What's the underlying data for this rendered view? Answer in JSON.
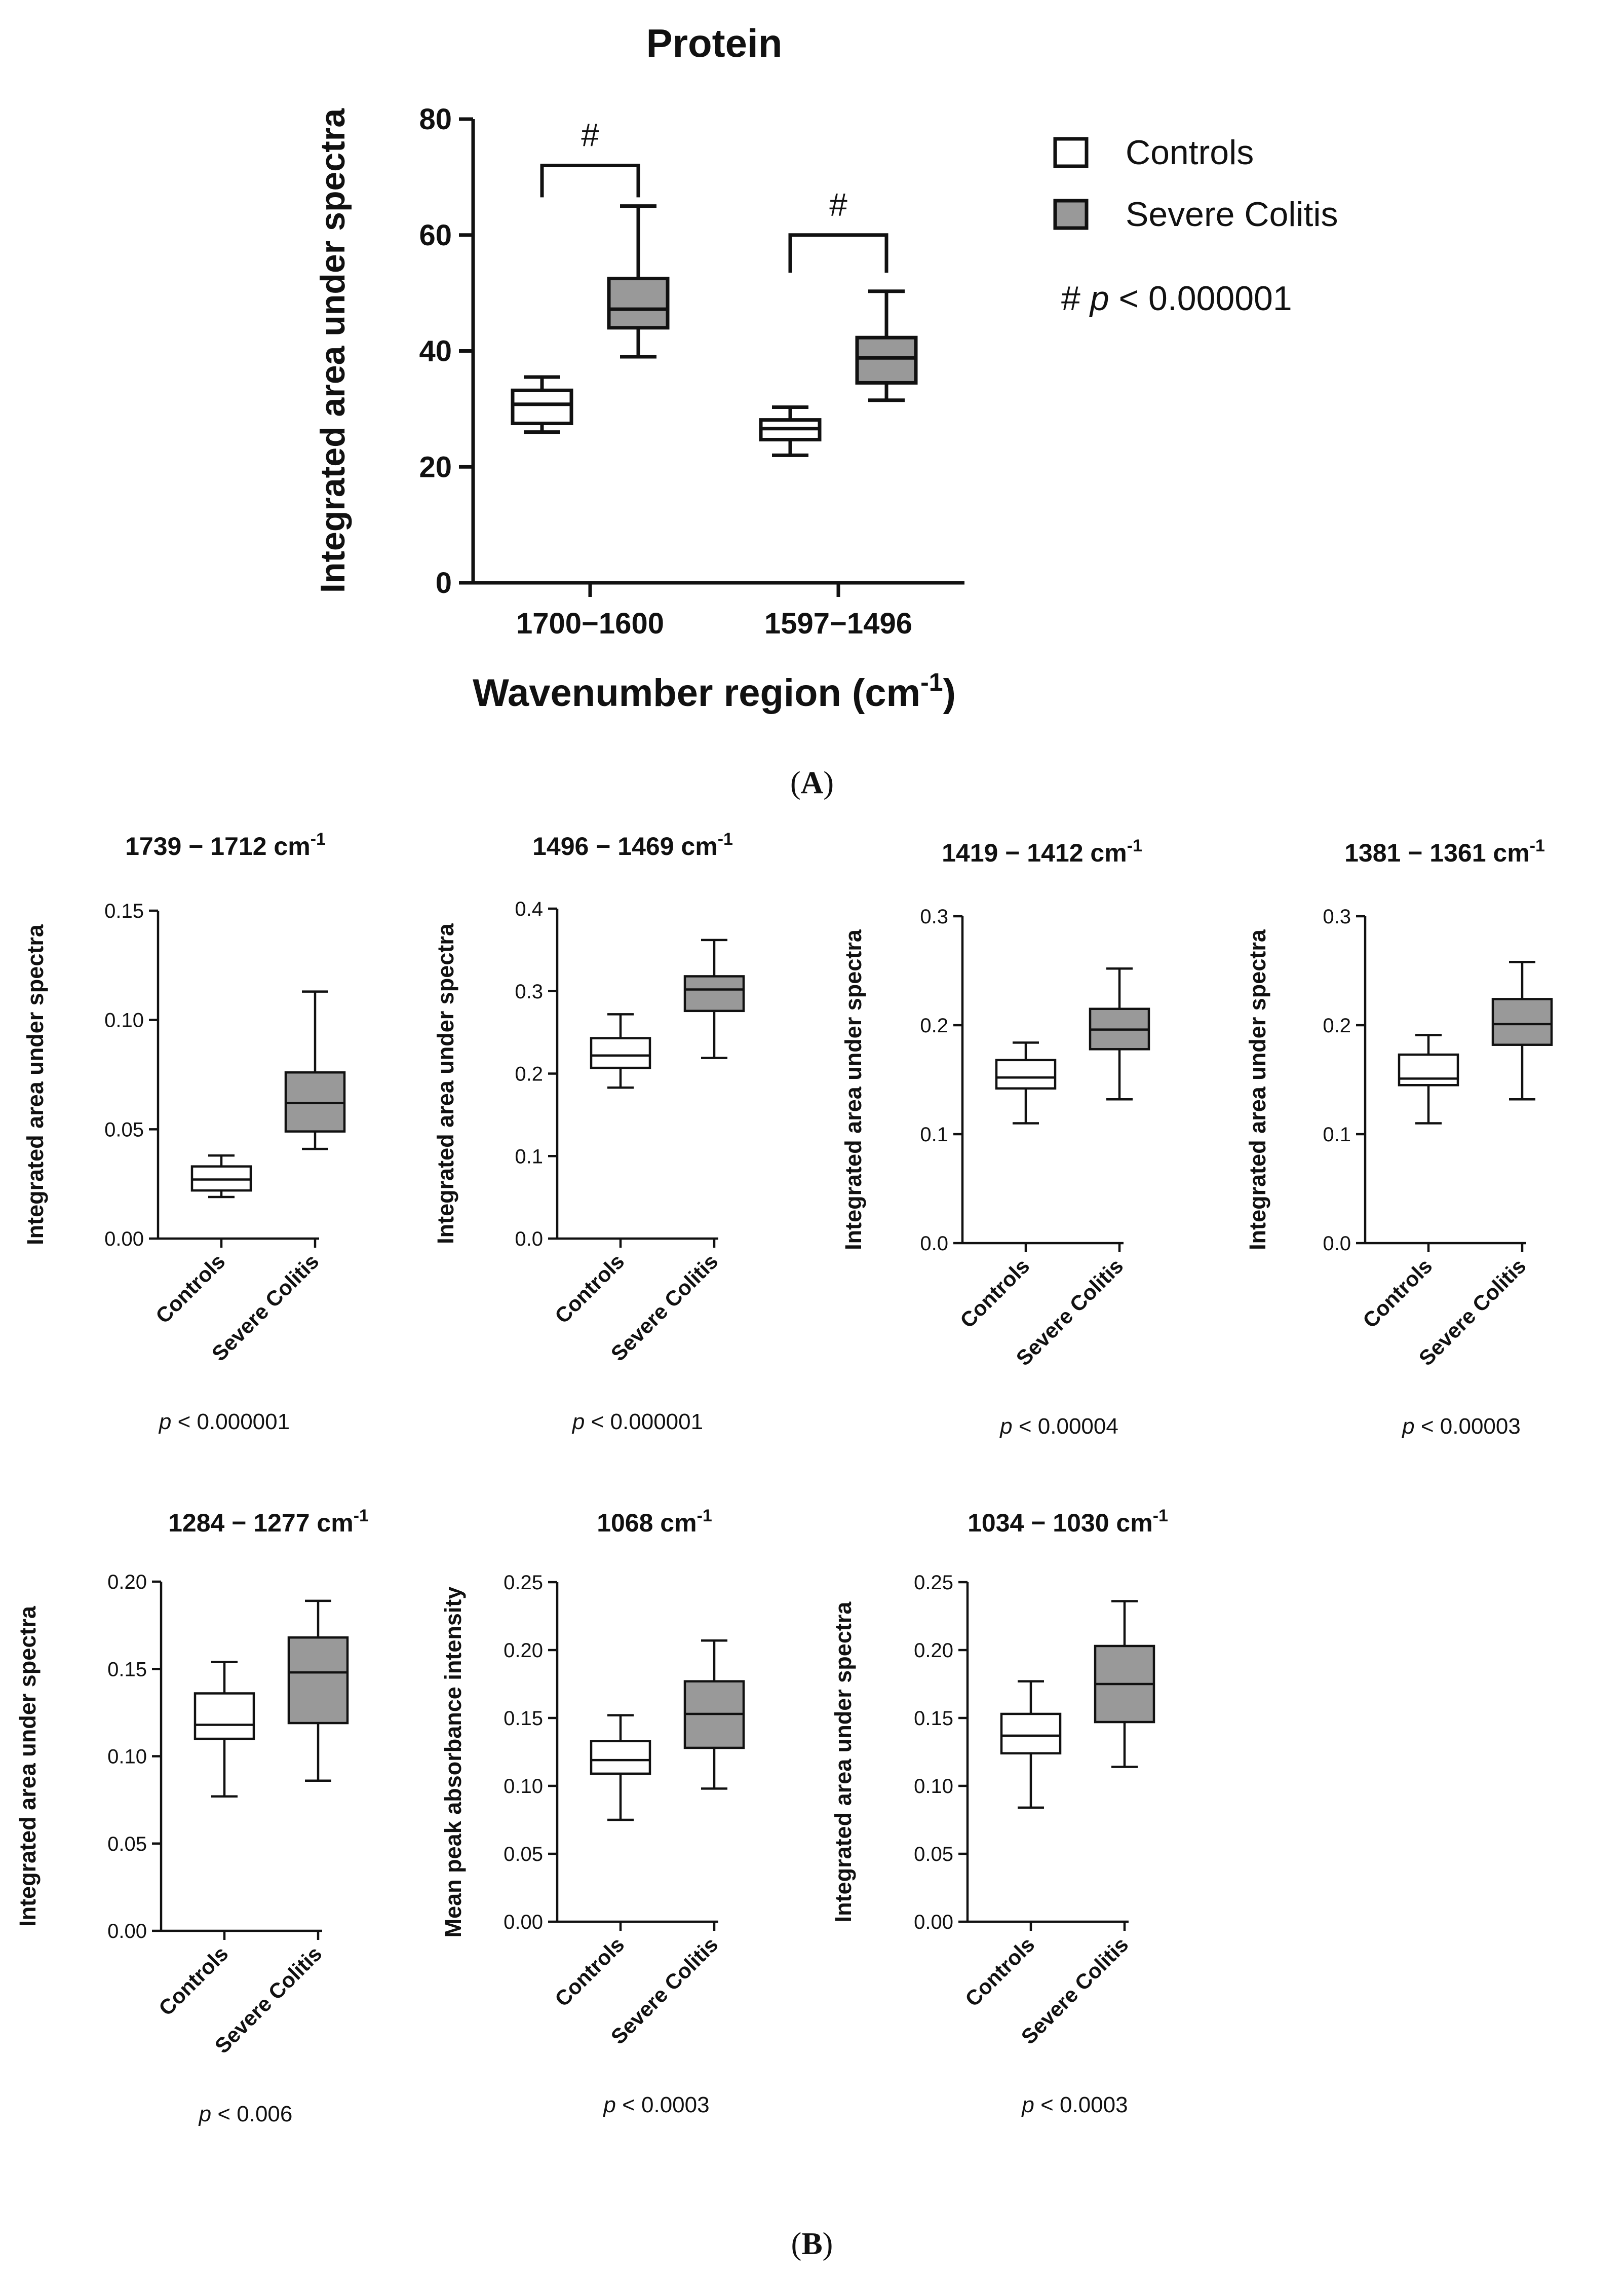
{
  "panels": {
    "a_label": "A",
    "b_label": "B"
  },
  "chart_data": [
    {
      "id": "protein",
      "type": "box",
      "title": "Protein",
      "ylabel": "Integrated area under spectra",
      "xlabel": "Wavenumber region (cm",
      "xlabel_sup": "-1",
      "xlabel_end": ")",
      "ylim": [
        0,
        80
      ],
      "yticks": [
        0,
        20,
        40,
        60,
        80
      ],
      "yticklabels": [
        "0",
        "20",
        "40",
        "60",
        "80"
      ],
      "categories": [
        "1700−1600",
        "1597−1496"
      ],
      "series": [
        {
          "name": "Controls",
          "color": "#ffffff",
          "boxes": [
            {
              "min": 26,
              "q1": 27.5,
              "median": 30.8,
              "q3": 33.2,
              "max": 35.5
            },
            {
              "min": 22,
              "q1": 24.7,
              "median": 26.6,
              "q3": 28.1,
              "max": 30.3
            }
          ]
        },
        {
          "name": "Severe Colitis",
          "color": "#999999",
          "boxes": [
            {
              "min": 39,
              "q1": 44,
              "median": 47.2,
              "q3": 52.5,
              "max": 65
            },
            {
              "min": 31.5,
              "q1": 34.5,
              "median": 38.8,
              "q3": 42.3,
              "max": 50.3
            }
          ]
        }
      ],
      "significance": [
        {
          "category": 0,
          "mark": "#"
        },
        {
          "category": 1,
          "mark": "#"
        }
      ],
      "legend": {
        "position": "right",
        "note_mark": "#",
        "note_p": "p",
        "note_rest": " < 0.000001"
      }
    },
    {
      "id": "b1",
      "type": "box",
      "title": "1739 − 1712 cm",
      "title_sup": "-1",
      "ylabel": "Integrated area under spectra",
      "ylim": [
        0,
        0.15
      ],
      "yticks": [
        0,
        0.05,
        0.1,
        0.15
      ],
      "yticklabels": [
        "0.00",
        "0.05",
        "0.10",
        "0.15"
      ],
      "categories": [
        "Controls",
        "Severe Colitis"
      ],
      "boxes": [
        {
          "min": 0.019,
          "q1": 0.022,
          "median": 0.027,
          "q3": 0.033,
          "max": 0.038
        },
        {
          "min": 0.041,
          "q1": 0.049,
          "median": 0.062,
          "q3": 0.076,
          "max": 0.113
        }
      ],
      "p_label": "p",
      "p_rest": " < 0.000001"
    },
    {
      "id": "b2",
      "type": "box",
      "title": "1496 − 1469 cm",
      "title_sup": "-1",
      "ylabel": "Integrated area under spectra",
      "ylim": [
        0,
        0.4
      ],
      "yticks": [
        0,
        0.1,
        0.2,
        0.3,
        0.4
      ],
      "yticklabels": [
        "0.0",
        "0.1",
        "0.2",
        "0.3",
        "0.4"
      ],
      "categories": [
        "Controls",
        "Severe Colitis"
      ],
      "boxes": [
        {
          "min": 0.183,
          "q1": 0.207,
          "median": 0.222,
          "q3": 0.243,
          "max": 0.272
        },
        {
          "min": 0.219,
          "q1": 0.276,
          "median": 0.302,
          "q3": 0.318,
          "max": 0.362
        }
      ],
      "p_label": "p",
      "p_rest": " < 0.000001"
    },
    {
      "id": "b3",
      "type": "box",
      "title": "1419 − 1412 cm",
      "title_sup": "-1",
      "ylabel": "Integrated area under spectra",
      "ylim": [
        0,
        0.3
      ],
      "yticks": [
        0,
        0.1,
        0.2,
        0.3
      ],
      "yticklabels": [
        "0.0",
        "0.1",
        "0.2",
        "0.3"
      ],
      "categories": [
        "Controls",
        "Severe Colitis"
      ],
      "boxes": [
        {
          "min": 0.11,
          "q1": 0.142,
          "median": 0.152,
          "q3": 0.168,
          "max": 0.184
        },
        {
          "min": 0.132,
          "q1": 0.178,
          "median": 0.196,
          "q3": 0.215,
          "max": 0.252
        }
      ],
      "p_label": "p",
      "p_rest": " < 0.00004"
    },
    {
      "id": "b4",
      "type": "box",
      "title": "1381 − 1361 cm",
      "title_sup": "-1",
      "ylabel": "Integrated area under spectra",
      "ylim": [
        0,
        0.3
      ],
      "yticks": [
        0,
        0.1,
        0.2,
        0.3
      ],
      "yticklabels": [
        "0.0",
        "0.1",
        "0.2",
        "0.3"
      ],
      "categories": [
        "Controls",
        "Severe Colitis"
      ],
      "boxes": [
        {
          "min": 0.11,
          "q1": 0.145,
          "median": 0.151,
          "q3": 0.173,
          "max": 0.191
        },
        {
          "min": 0.132,
          "q1": 0.182,
          "median": 0.201,
          "q3": 0.224,
          "max": 0.258
        }
      ],
      "p_label": "p",
      "p_rest": " < 0.00003"
    },
    {
      "id": "b5",
      "type": "box",
      "title": "1284 − 1277 cm",
      "title_sup": "-1",
      "ylabel": "Integrated area under spectra",
      "ylim": [
        0,
        0.2
      ],
      "yticks": [
        0,
        0.05,
        0.1,
        0.15,
        0.2
      ],
      "yticklabels": [
        "0.00",
        "0.05",
        "0.10",
        "0.15",
        "0.20"
      ],
      "categories": [
        "Controls",
        "Severe Colitis"
      ],
      "boxes": [
        {
          "min": 0.077,
          "q1": 0.11,
          "median": 0.118,
          "q3": 0.136,
          "max": 0.154
        },
        {
          "min": 0.086,
          "q1": 0.119,
          "median": 0.148,
          "q3": 0.168,
          "max": 0.189
        }
      ],
      "p_label": "p",
      "p_rest": " < 0.006"
    },
    {
      "id": "b6",
      "type": "box",
      "title": "1068 cm",
      "title_sup": "-1",
      "ylabel": "Mean peak absorbance intensity",
      "ylim": [
        0,
        0.25
      ],
      "yticks": [
        0,
        0.05,
        0.1,
        0.15,
        0.2,
        0.25
      ],
      "yticklabels": [
        "0.00",
        "0.05",
        "0.10",
        "0.15",
        "0.20",
        "0.25"
      ],
      "categories": [
        "Controls",
        "Severe Colitis"
      ],
      "boxes": [
        {
          "min": 0.075,
          "q1": 0.109,
          "median": 0.119,
          "q3": 0.133,
          "max": 0.152
        },
        {
          "min": 0.098,
          "q1": 0.128,
          "median": 0.153,
          "q3": 0.177,
          "max": 0.207
        }
      ],
      "p_label": "p",
      "p_rest": " < 0.0003"
    },
    {
      "id": "b7",
      "type": "box",
      "title": "1034 − 1030 cm",
      "title_sup": "-1",
      "ylabel": "Integrated area under spectra",
      "ylim": [
        0,
        0.25
      ],
      "yticks": [
        0,
        0.05,
        0.1,
        0.15,
        0.2,
        0.25
      ],
      "yticklabels": [
        "0.00",
        "0.05",
        "0.10",
        "0.15",
        "0.20",
        "0.25"
      ],
      "categories": [
        "Controls",
        "Severe Colitis"
      ],
      "boxes": [
        {
          "min": 0.084,
          "q1": 0.124,
          "median": 0.137,
          "q3": 0.153,
          "max": 0.177
        },
        {
          "min": 0.114,
          "q1": 0.147,
          "median": 0.175,
          "q3": 0.203,
          "max": 0.236
        }
      ],
      "p_label": "p",
      "p_rest": " < 0.0003"
    }
  ]
}
